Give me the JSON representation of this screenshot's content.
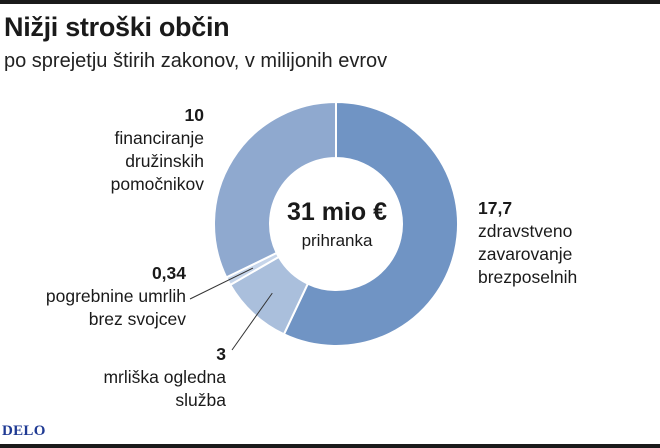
{
  "title": "Nižji stroški občin",
  "subtitle": "po sprejetju štirih zakonov, v milijonih evrov",
  "center": {
    "value": "31 mio €",
    "label": "prihranka"
  },
  "brand": "DELO",
  "colors": {
    "background": "#ffffff",
    "text": "#1a1a1a",
    "slice_dark": "#7094c4",
    "slice_medium": "#8fa9cf",
    "slice_light": "#aabfdc",
    "slice_pale": "#c6d5ea",
    "brand": "#1f3a93"
  },
  "chart_data": {
    "type": "pie",
    "variant": "donut",
    "title": "Nižji stroški občin",
    "subtitle": "po sprejetju štirih zakonov, v milijonih evrov",
    "total_label": "31 mio €",
    "slices": [
      {
        "value": 17.7,
        "value_label": "17,7",
        "label": "zdravstveno\nzavarovanje\nbrezposelnih",
        "color": "#7094c4"
      },
      {
        "value": 3,
        "value_label": "3",
        "label": "mrliška ogledna\nslužba",
        "color": "#aabfdc"
      },
      {
        "value": 0.34,
        "value_label": "0,34",
        "label": "pogrebnine umrlih\nbrez svojcev",
        "color": "#c6d5ea"
      },
      {
        "value": 10,
        "value_label": "10",
        "label": "financiranje\ndružinskih\npomočnikov",
        "color": "#8fa9cf"
      }
    ]
  }
}
